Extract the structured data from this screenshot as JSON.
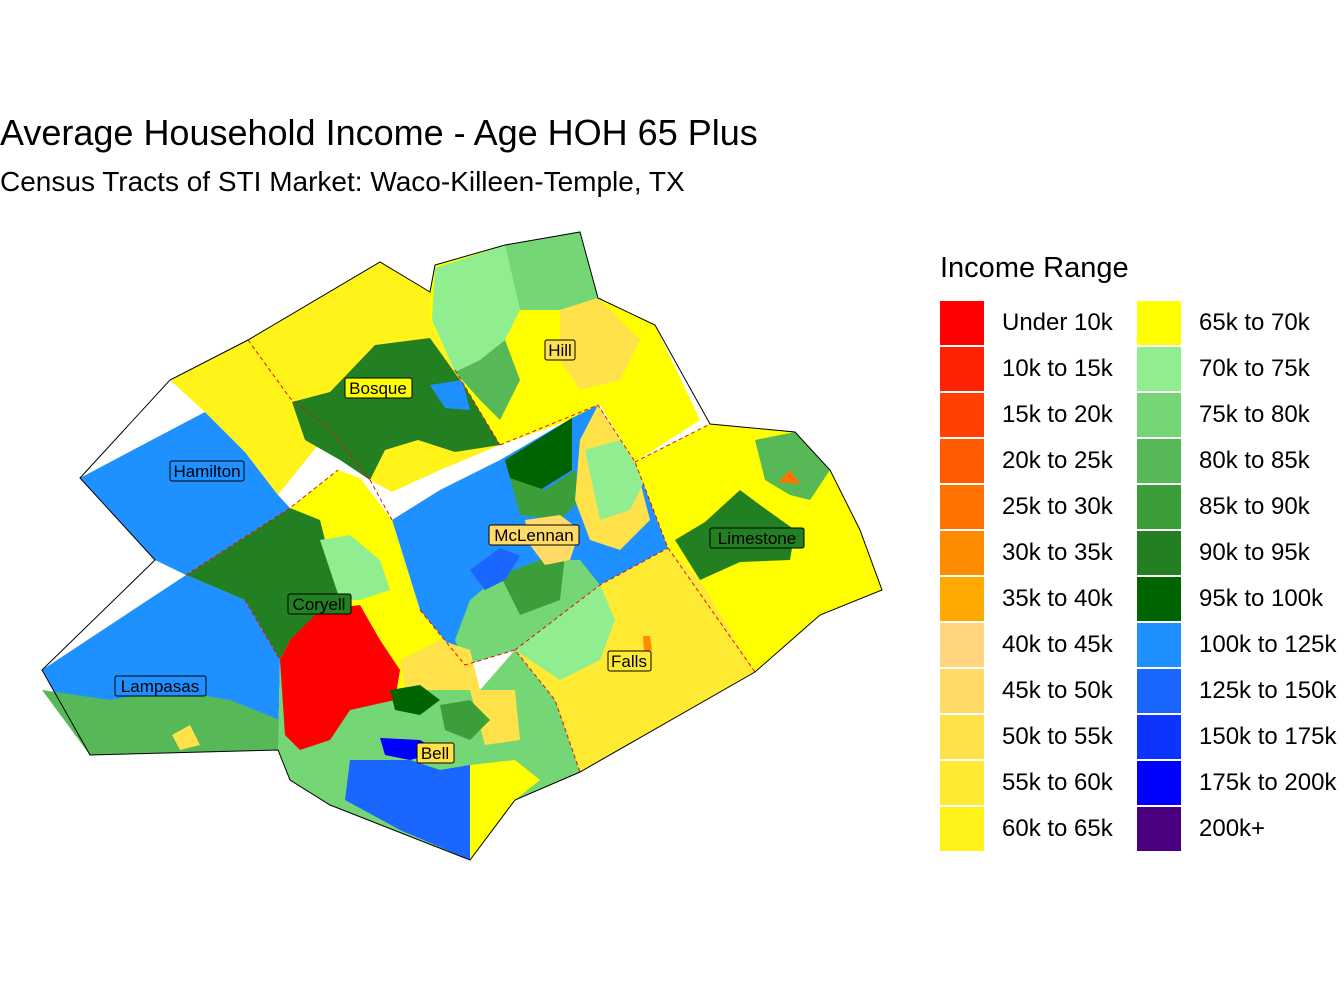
{
  "title": "Average Household Income - Age HOH 65 Plus",
  "subtitle": "Census Tracts of STI Market: Waco-Killeen-Temple, TX",
  "legend": {
    "title": "Income Range",
    "items": [
      {
        "label": "Under 10k",
        "color": "#ff0000"
      },
      {
        "label": "10k to 15k",
        "color": "#ff2200"
      },
      {
        "label": "15k to 20k",
        "color": "#ff4000"
      },
      {
        "label": "20k to 25k",
        "color": "#ff5a00"
      },
      {
        "label": "25k to 30k",
        "color": "#ff7200"
      },
      {
        "label": "30k to 35k",
        "color": "#ff8c00"
      },
      {
        "label": "35k to 40k",
        "color": "#ffa800"
      },
      {
        "label": "40k to 45k",
        "color": "#ffd580"
      },
      {
        "label": "45k to 50k",
        "color": "#ffda66"
      },
      {
        "label": "50k to 55k",
        "color": "#ffe24a"
      },
      {
        "label": "55k to 60k",
        "color": "#ffea33"
      },
      {
        "label": "60k to 65k",
        "color": "#fff31a"
      },
      {
        "label": "65k to 70k",
        "color": "#ffff00"
      },
      {
        "label": "70k to 75k",
        "color": "#90ee90"
      },
      {
        "label": "75k to 80k",
        "color": "#74d674"
      },
      {
        "label": "80k to 85k",
        "color": "#57b857"
      },
      {
        "label": "85k to 90k",
        "color": "#3b9e3b"
      },
      {
        "label": "90k to 95k",
        "color": "#228022"
      },
      {
        "label": "95k to 100k",
        "color": "#006400"
      },
      {
        "label": "100k to 125k",
        "color": "#1e90ff"
      },
      {
        "label": "125k to 150k",
        "color": "#1a66ff"
      },
      {
        "label": "150k to 175k",
        "color": "#0d33ff"
      },
      {
        "label": "175k to 200k",
        "color": "#0000ff"
      },
      {
        "label": "200k+",
        "color": "#4b0082"
      }
    ]
  },
  "counties": [
    {
      "name": "Hill"
    },
    {
      "name": "Bosque"
    },
    {
      "name": "Hamilton"
    },
    {
      "name": "McLennan"
    },
    {
      "name": "Limestone"
    },
    {
      "name": "Coryell"
    },
    {
      "name": "Lampasas"
    },
    {
      "name": "Falls"
    },
    {
      "name": "Bell"
    }
  ]
}
